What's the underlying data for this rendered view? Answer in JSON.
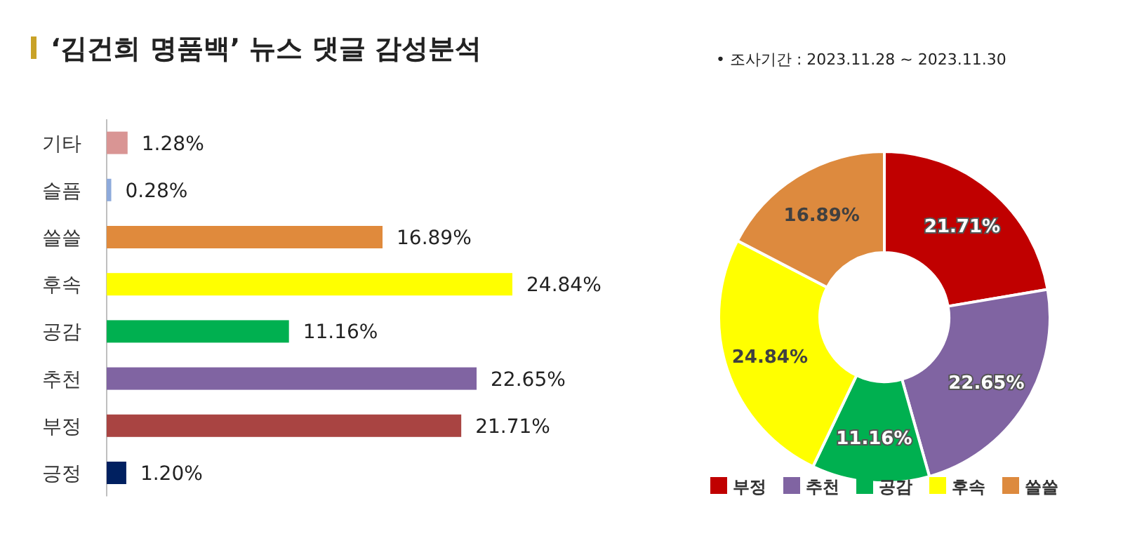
{
  "chart_data": [
    {
      "type": "bar",
      "orientation": "horizontal",
      "title": "‘김건희 명품백’ 뉴스 댓글 감성분석",
      "categories": [
        "기타",
        "슬픔",
        "쓸쓸",
        "후속",
        "공감",
        "추천",
        "부정",
        "긍정"
      ],
      "values": [
        1.28,
        0.28,
        16.89,
        24.84,
        11.16,
        22.65,
        21.71,
        1.2
      ],
      "colors": [
        "#d99594",
        "#8eaadb",
        "#e08a3c",
        "#ffff00",
        "#00b050",
        "#8064a2",
        "#a94442",
        "#002060"
      ],
      "value_labels": [
        "1.28%",
        "0.28%",
        "16.89%",
        "24.84%",
        "11.16%",
        "22.65%",
        "21.71%",
        "1.20%"
      ]
    },
    {
      "type": "donut",
      "annotations": [
        "•   조사기간 : 2023.11.28 ~ 2023.11.30"
      ],
      "categories": [
        "부정",
        "추천",
        "공감",
        "후속",
        "쓸쓸"
      ],
      "values": [
        21.71,
        22.65,
        11.16,
        24.84,
        16.89
      ],
      "colors": [
        "#c00000",
        "#8064a2",
        "#00b050",
        "#ffff00",
        "#dd8a3e"
      ],
      "value_labels": [
        "21.71%",
        "22.65%",
        "11.16%",
        "24.84%",
        "16.89%"
      ],
      "legend": "bottom"
    }
  ]
}
